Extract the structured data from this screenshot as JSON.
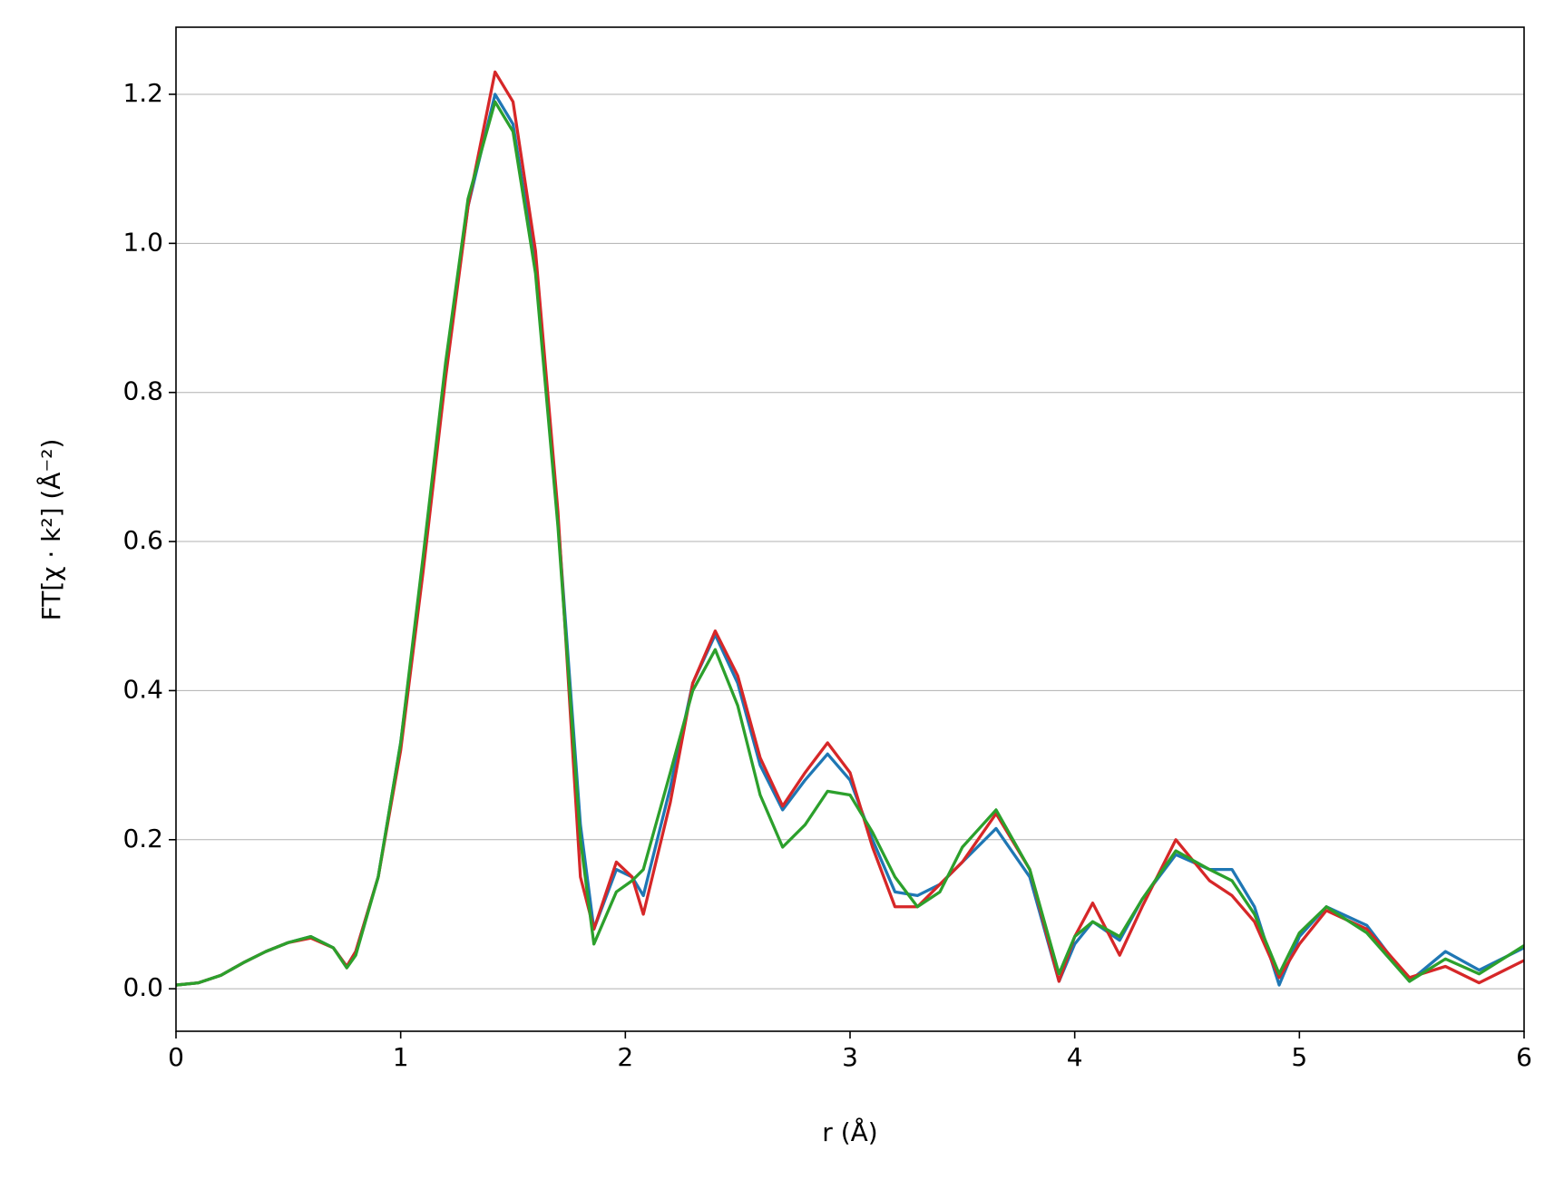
{
  "chart_data": {
    "type": "line",
    "xlabel": "r (Å)",
    "ylabel": "FT[χ · k²] (Å⁻²)",
    "x": [
      0,
      0.1,
      0.2,
      0.3,
      0.4,
      0.5,
      0.6,
      0.7,
      0.76,
      0.8,
      0.9,
      1.0,
      1.1,
      1.2,
      1.3,
      1.42,
      1.5,
      1.6,
      1.7,
      1.8,
      1.86,
      1.96,
      2.03,
      2.08,
      2.2,
      2.3,
      2.4,
      2.5,
      2.6,
      2.7,
      2.8,
      2.9,
      3.0,
      3.1,
      3.2,
      3.3,
      3.4,
      3.5,
      3.65,
      3.8,
      3.93,
      4.0,
      4.08,
      4.2,
      4.3,
      4.45,
      4.6,
      4.7,
      4.8,
      4.91,
      5.0,
      5.12,
      5.3,
      5.49,
      5.65,
      5.8,
      6.0
    ],
    "series": [
      {
        "color": "#1f77b4",
        "values": [
          0.005,
          0.008,
          0.018,
          0.035,
          0.05,
          0.062,
          0.07,
          0.055,
          0.03,
          0.05,
          0.15,
          0.33,
          0.57,
          0.83,
          1.05,
          1.2,
          1.16,
          0.97,
          0.63,
          0.22,
          0.08,
          0.16,
          0.15,
          0.125,
          0.27,
          0.41,
          0.475,
          0.41,
          0.3,
          0.24,
          0.28,
          0.315,
          0.28,
          0.2,
          0.13,
          0.125,
          0.14,
          0.17,
          0.215,
          0.15,
          0.01,
          0.06,
          0.09,
          0.065,
          0.12,
          0.18,
          0.16,
          0.16,
          0.11,
          0.005,
          0.07,
          0.11,
          0.085,
          0.01,
          0.05,
          0.025,
          0.055
        ]
      },
      {
        "color": "#d62728",
        "values": [
          0.005,
          0.008,
          0.018,
          0.035,
          0.05,
          0.062,
          0.068,
          0.055,
          0.03,
          0.05,
          0.15,
          0.32,
          0.56,
          0.82,
          1.05,
          1.23,
          1.19,
          0.99,
          0.64,
          0.15,
          0.08,
          0.17,
          0.15,
          0.1,
          0.25,
          0.41,
          0.48,
          0.42,
          0.31,
          0.245,
          0.29,
          0.33,
          0.29,
          0.19,
          0.11,
          0.11,
          0.14,
          0.17,
          0.235,
          0.16,
          0.01,
          0.07,
          0.115,
          0.045,
          0.11,
          0.2,
          0.145,
          0.125,
          0.09,
          0.015,
          0.06,
          0.105,
          0.08,
          0.015,
          0.03,
          0.008,
          0.038
        ]
      },
      {
        "color": "#2ca02c",
        "values": [
          0.005,
          0.008,
          0.018,
          0.035,
          0.05,
          0.062,
          0.07,
          0.055,
          0.028,
          0.045,
          0.15,
          0.33,
          0.58,
          0.84,
          1.06,
          1.19,
          1.15,
          0.96,
          0.62,
          0.2,
          0.06,
          0.13,
          0.145,
          0.16,
          0.29,
          0.4,
          0.455,
          0.38,
          0.26,
          0.19,
          0.22,
          0.265,
          0.26,
          0.21,
          0.15,
          0.11,
          0.13,
          0.19,
          0.24,
          0.16,
          0.02,
          0.07,
          0.09,
          0.07,
          0.12,
          0.185,
          0.16,
          0.145,
          0.1,
          0.02,
          0.075,
          0.11,
          0.075,
          0.01,
          0.04,
          0.02,
          0.058
        ]
      }
    ],
    "xlim": [
      0,
      6
    ],
    "xticks": [
      0,
      1,
      2,
      3,
      4,
      5,
      6
    ],
    "ylim": [
      -0.057,
      1.29
    ],
    "yticks": [
      {
        "value": 0,
        "label": "0.0"
      },
      0.2,
      0.4,
      0.6,
      0.8,
      {
        "value": 1,
        "label": "1.0"
      },
      1.2
    ],
    "grid": true
  }
}
